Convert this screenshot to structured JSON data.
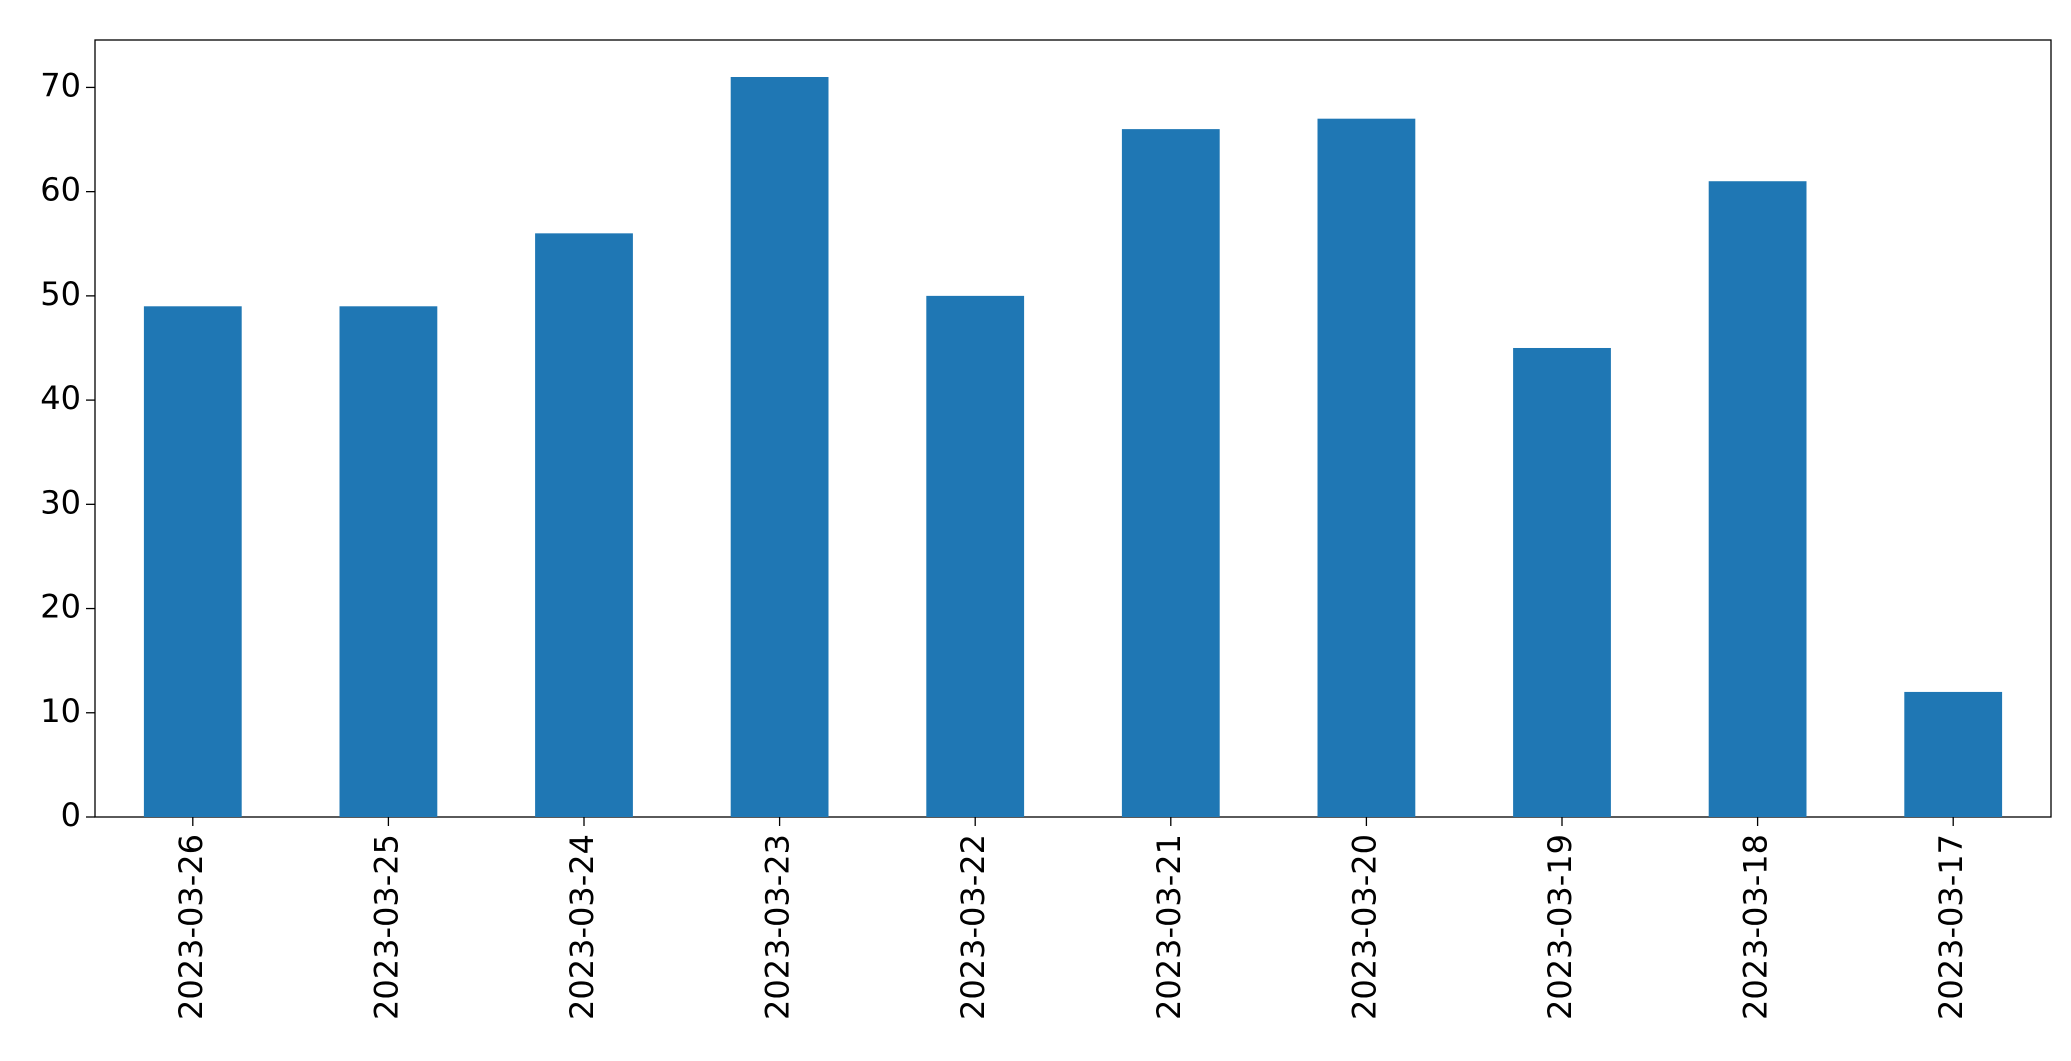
{
  "chart_data": {
    "type": "bar",
    "categories": [
      "2023-03-26",
      "2023-03-25",
      "2023-03-24",
      "2023-03-23",
      "2023-03-22",
      "2023-03-21",
      "2023-03-20",
      "2023-03-19",
      "2023-03-18",
      "2023-03-17"
    ],
    "values": [
      49,
      49,
      56,
      71,
      50,
      66,
      67,
      45,
      61,
      12
    ],
    "color": "#1f77b4",
    "ylim": [
      0,
      74.55
    ],
    "yticks": [
      0,
      10,
      20,
      30,
      40,
      50,
      60,
      70
    ],
    "grid": false
  }
}
